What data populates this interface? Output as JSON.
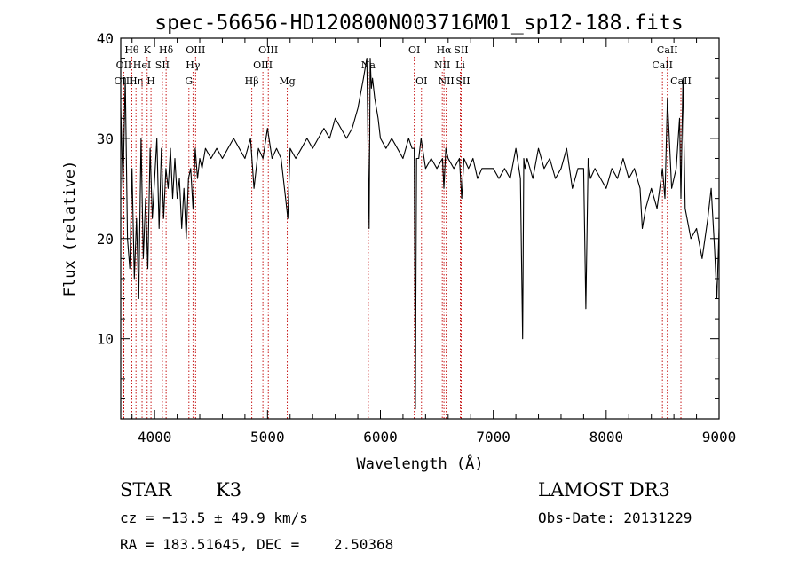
{
  "chart_data": {
    "type": "line",
    "title": "spec-56656-HD120800N003716M01_sp12-188.fits",
    "xlabel": "Wavelength (Å)",
    "ylabel": "Flux (relative)",
    "xlim": [
      3700,
      9000
    ],
    "ylim": [
      2,
      40
    ],
    "xticks": [
      4000,
      5000,
      6000,
      7000,
      8000,
      9000
    ],
    "yticks": [
      10,
      20,
      30,
      40
    ],
    "grid": false,
    "series": [
      {
        "color": "#000000",
        "x": [
          3700,
          3720,
          3740,
          3760,
          3780,
          3800,
          3820,
          3840,
          3860,
          3880,
          3900,
          3920,
          3940,
          3960,
          3980,
          4000,
          4020,
          4040,
          4060,
          4080,
          4100,
          4120,
          4140,
          4160,
          4180,
          4200,
          4220,
          4240,
          4260,
          4280,
          4300,
          4320,
          4340,
          4360,
          4380,
          4400,
          4420,
          4450,
          4500,
          4550,
          4600,
          4650,
          4700,
          4750,
          4800,
          4850,
          4880,
          4920,
          4960,
          5000,
          5040,
          5080,
          5120,
          5160,
          5180,
          5200,
          5250,
          5300,
          5350,
          5400,
          5450,
          5500,
          5550,
          5600,
          5650,
          5700,
          5750,
          5800,
          5850,
          5880,
          5900,
          5910,
          5920,
          5930,
          5950,
          5980,
          6000,
          6050,
          6100,
          6150,
          6200,
          6250,
          6280,
          6300,
          6310,
          6320,
          6340,
          6360,
          6400,
          6450,
          6500,
          6550,
          6562,
          6580,
          6600,
          6650,
          6700,
          6720,
          6740,
          6780,
          6820,
          6860,
          6900,
          6950,
          7000,
          7050,
          7100,
          7150,
          7200,
          7240,
          7260,
          7270,
          7280,
          7300,
          7350,
          7400,
          7450,
          7500,
          7550,
          7600,
          7650,
          7700,
          7750,
          7800,
          7820,
          7840,
          7860,
          7900,
          7950,
          8000,
          8050,
          8100,
          8150,
          8200,
          8250,
          8300,
          8320,
          8350,
          8400,
          8450,
          8498,
          8520,
          8542,
          8580,
          8620,
          8650,
          8662,
          8680,
          8700,
          8750,
          8800,
          8850,
          8900,
          8930,
          8960,
          8980,
          9000
        ],
        "values": [
          33,
          25,
          36,
          20,
          17,
          27,
          16,
          22,
          14,
          30,
          18,
          24,
          17,
          29,
          22,
          26,
          30,
          21,
          29,
          22,
          27,
          25,
          29,
          24,
          28,
          24,
          26,
          21,
          25,
          20,
          26,
          27,
          23,
          29,
          26,
          28,
          27,
          29,
          28,
          29,
          28,
          29,
          30,
          29,
          28,
          30,
          25,
          29,
          28,
          31,
          28,
          29,
          28,
          24,
          22,
          29,
          28,
          29,
          30,
          29,
          30,
          31,
          30,
          32,
          31,
          30,
          31,
          33,
          36,
          38,
          21,
          38,
          35,
          36,
          34,
          32,
          30,
          29,
          30,
          29,
          28,
          30,
          29,
          29,
          3,
          28,
          28,
          30,
          27,
          28,
          27,
          28,
          25,
          29,
          28,
          27,
          28,
          24,
          28,
          27,
          28,
          26,
          27,
          27,
          27,
          26,
          27,
          26,
          29,
          26,
          10,
          28,
          27,
          28,
          26,
          29,
          27,
          28,
          26,
          27,
          29,
          25,
          27,
          27,
          13,
          28,
          26,
          27,
          26,
          25,
          27,
          26,
          28,
          26,
          27,
          25,
          21,
          23,
          25,
          23,
          27,
          24,
          34,
          25,
          27,
          32,
          24,
          36,
          23,
          20,
          21,
          18,
          22,
          25,
          19,
          14,
          21
        ]
      }
    ],
    "lines": [
      {
        "name": "Hθ",
        "x": 3798,
        "row": 1
      },
      {
        "name": "OII",
        "x": 3727,
        "row": 2
      },
      {
        "name": "OIII",
        "x": 3727,
        "row": 3
      },
      {
        "name": "Hη",
        "x": 3835,
        "row": 3
      },
      {
        "name": "HeI",
        "x": 3889,
        "row": 2
      },
      {
        "name": "K",
        "x": 3934,
        "row": 1
      },
      {
        "name": "H",
        "x": 3968,
        "row": 3
      },
      {
        "name": "SII",
        "x": 4069,
        "row": 2
      },
      {
        "name": "Hδ",
        "x": 4102,
        "row": 1
      },
      {
        "name": "G",
        "x": 4304,
        "row": 3
      },
      {
        "name": "Hγ",
        "x": 4340,
        "row": 2
      },
      {
        "name": "OIII",
        "x": 4363,
        "row": 1
      },
      {
        "name": "Hβ",
        "x": 4861,
        "row": 3
      },
      {
        "name": "OIII",
        "x": 4959,
        "row": 2
      },
      {
        "name": "OIII",
        "x": 5007,
        "row": 1
      },
      {
        "name": "Mg",
        "x": 5175,
        "row": 3
      },
      {
        "name": "Na",
        "x": 5893,
        "row": 2
      },
      {
        "name": "OI",
        "x": 6300,
        "row": 1
      },
      {
        "name": "OI",
        "x": 6364,
        "row": 3
      },
      {
        "name": "NII",
        "x": 6548,
        "row": 2
      },
      {
        "name": "Hα",
        "x": 6563,
        "row": 1
      },
      {
        "name": "NII",
        "x": 6583,
        "row": 3
      },
      {
        "name": "SII",
        "x": 6716,
        "row": 1
      },
      {
        "name": "Li",
        "x": 6708,
        "row": 2
      },
      {
        "name": "SII",
        "x": 6731,
        "row": 3
      },
      {
        "name": "CaII",
        "x": 8498,
        "row": 2
      },
      {
        "name": "CaII",
        "x": 8542,
        "row": 1
      },
      {
        "name": "CaII",
        "x": 8662,
        "row": 3
      }
    ]
  },
  "info": {
    "class": "STAR",
    "subclass": "K3",
    "survey": "LAMOST DR3",
    "cz": "cz = −13.5 ± 49.9 km/s",
    "obs_date": "Obs-Date: 20131229",
    "coords": "RA = 183.51645, DEC =    2.50368"
  }
}
